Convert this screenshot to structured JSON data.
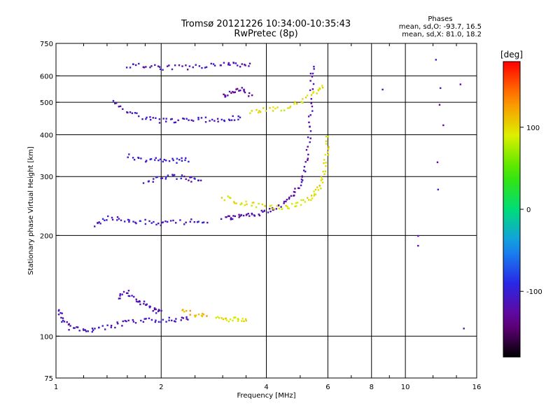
{
  "header": {
    "title_line1": "Tromsø 20121226 10:34:00-10:35:43",
    "title_line2": "RwPretec (8p)"
  },
  "phase_info": {
    "heading": "Phases",
    "line_o": "mean, sd,O:  -93.7, 16.5",
    "line_x": "mean, sd,X:  81.0, 18.2"
  },
  "chart_data": {
    "type": "scatter",
    "xlabel": "Frequency [MHz]",
    "ylabel": "Stationary phase Virtual Height [km]",
    "x_scale": "log",
    "y_scale": "log",
    "xlim": [
      1,
      16
    ],
    "ylim": [
      75,
      750
    ],
    "x_ticks": [
      1,
      2,
      4,
      6,
      8,
      10,
      16
    ],
    "y_ticks": [
      75,
      100,
      200,
      300,
      400,
      500,
      600,
      750
    ],
    "grid_x": [
      2,
      4,
      6,
      8,
      10
    ],
    "grid_y": [
      100,
      200,
      300,
      400,
      500,
      600
    ],
    "colorbar": {
      "label": "[deg]",
      "range": [
        -180,
        180
      ],
      "ticks": [
        100,
        0,
        -100
      ],
      "colormap": "rainbow"
    },
    "series": [
      {
        "points": [
          [
            1.02,
            120
          ],
          [
            1.05,
            112
          ],
          [
            1.1,
            106
          ],
          [
            1.2,
            104
          ],
          [
            1.3,
            105
          ],
          [
            1.45,
            107
          ],
          [
            1.6,
            110
          ],
          [
            1.8,
            111
          ],
          [
            2.0,
            112
          ],
          [
            2.2,
            112
          ],
          [
            2.4,
            113
          ]
        ],
        "phase": -110
      },
      {
        "points": [
          [
            1.5,
            130
          ],
          [
            1.6,
            135
          ],
          [
            1.7,
            128
          ],
          [
            1.8,
            125
          ],
          [
            1.9,
            120
          ],
          [
            2.0,
            118
          ]
        ],
        "phase": -115
      },
      {
        "points": [
          [
            2.3,
            120
          ],
          [
            2.5,
            116
          ],
          [
            2.7,
            115
          ]
        ],
        "phase": 120
      },
      {
        "points": [
          [
            2.9,
            113
          ],
          [
            3.1,
            112
          ],
          [
            3.3,
            112
          ],
          [
            3.5,
            112
          ]
        ],
        "phase": 95
      },
      {
        "points": [
          [
            1.3,
            215
          ],
          [
            1.4,
            225
          ],
          [
            1.55,
            222
          ],
          [
            1.7,
            220
          ],
          [
            1.9,
            218
          ],
          [
            2.1,
            218
          ],
          [
            2.4,
            220
          ],
          [
            2.7,
            222
          ]
        ],
        "phase": -105
      },
      {
        "points": [
          [
            3.0,
            225
          ],
          [
            3.2,
            226
          ],
          [
            3.4,
            228
          ],
          [
            3.6,
            230
          ],
          [
            3.9,
            234
          ],
          [
            4.2,
            240
          ],
          [
            4.5,
            250
          ],
          [
            4.8,
            265
          ],
          [
            5.0,
            285
          ],
          [
            5.2,
            320
          ],
          [
            5.3,
            380
          ],
          [
            5.35,
            450
          ],
          [
            5.4,
            550
          ],
          [
            5.42,
            640
          ]
        ],
        "phase": -120
      },
      {
        "points": [
          [
            3.0,
            260
          ],
          [
            3.3,
            252
          ],
          [
            3.6,
            248
          ],
          [
            4.0,
            245
          ],
          [
            4.4,
            242
          ],
          [
            4.8,
            245
          ],
          [
            5.2,
            255
          ],
          [
            5.5,
            265
          ],
          [
            5.7,
            280
          ],
          [
            5.85,
            310
          ],
          [
            5.95,
            350
          ],
          [
            6.0,
            400
          ]
        ],
        "phase": 95
      },
      {
        "points": [
          [
            1.8,
            290
          ],
          [
            2.0,
            295
          ],
          [
            2.2,
            300
          ],
          [
            2.4,
            295
          ],
          [
            2.6,
            290
          ]
        ],
        "phase": -105
      },
      {
        "points": [
          [
            1.6,
            345
          ],
          [
            1.8,
            338
          ],
          [
            2.0,
            335
          ],
          [
            2.2,
            335
          ],
          [
            2.4,
            337
          ]
        ],
        "phase": -100
      },
      {
        "points": [
          [
            1.45,
            500
          ],
          [
            1.6,
            470
          ],
          [
            1.8,
            450
          ],
          [
            2.0,
            440
          ],
          [
            2.2,
            440
          ],
          [
            2.5,
            442
          ],
          [
            2.8,
            445
          ],
          [
            3.1,
            445
          ],
          [
            3.4,
            450
          ]
        ],
        "phase": -110
      },
      {
        "points": [
          [
            3.0,
            520
          ],
          [
            3.2,
            535
          ],
          [
            3.4,
            550
          ],
          [
            3.6,
            520
          ]
        ],
        "phase": -125
      },
      {
        "points": [
          [
            3.6,
            470
          ],
          [
            4.0,
            475
          ],
          [
            4.5,
            480
          ],
          [
            5.0,
            500
          ],
          [
            5.5,
            530
          ],
          [
            5.8,
            560
          ]
        ],
        "phase": 95
      },
      {
        "points": [
          [
            1.6,
            645
          ],
          [
            1.8,
            640
          ],
          [
            2.0,
            635
          ],
          [
            2.3,
            635
          ],
          [
            2.6,
            640
          ],
          [
            3.0,
            645
          ],
          [
            3.3,
            648
          ],
          [
            3.6,
            650
          ]
        ],
        "phase": -115
      },
      {
        "points": [
          [
            8.7,
            550
          ],
          [
            12.3,
            665
          ],
          [
            12.7,
            560
          ],
          [
            14.5,
            560
          ],
          [
            12.5,
            490
          ],
          [
            12.7,
            420
          ],
          [
            12.3,
            330
          ],
          [
            12.5,
            270
          ],
          [
            10.8,
            185
          ],
          [
            11.0,
            200
          ],
          [
            14.8,
            105
          ]
        ],
        "phase": -120
      }
    ]
  }
}
